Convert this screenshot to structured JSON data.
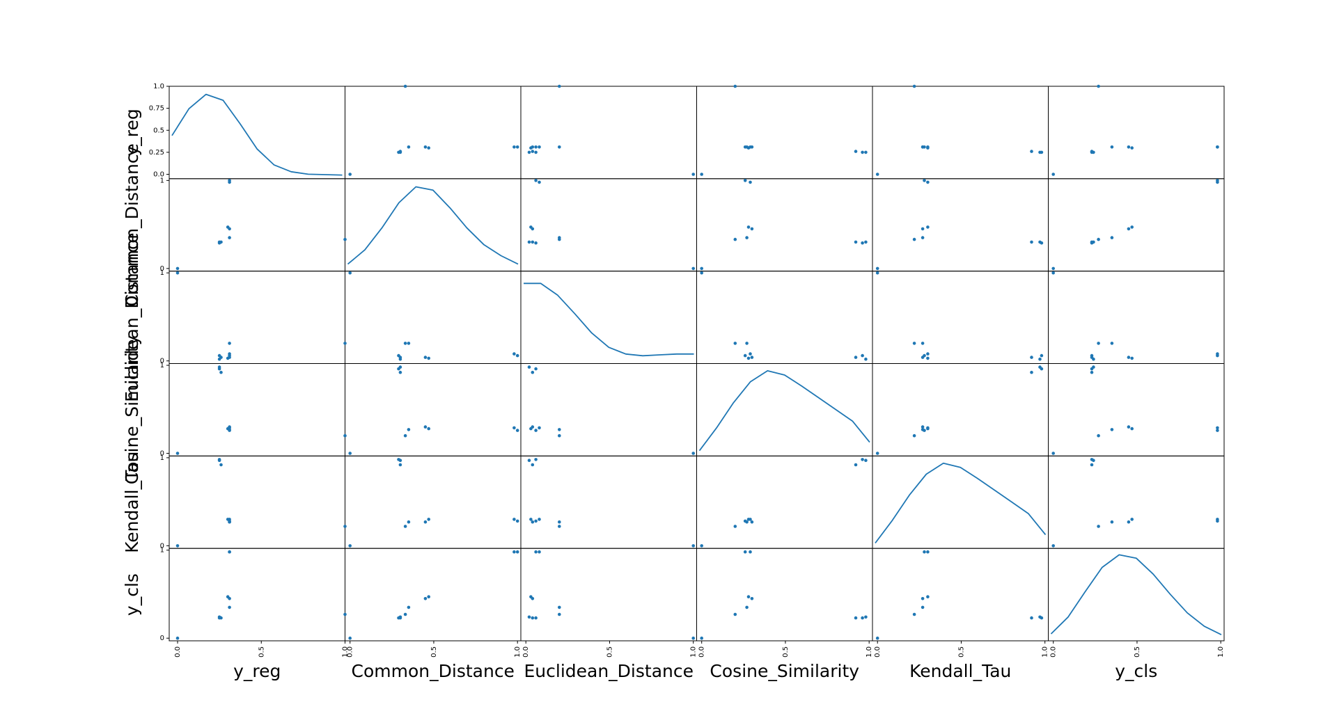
{
  "chart_data": {
    "type": "scatter",
    "subtype": "scatter-matrix",
    "diagonal": "kde",
    "variables": [
      "y_reg",
      "Common_Distance",
      "Euclidean_Distance",
      "Cosine_Similarity",
      "Kendall_Tau",
      "y_cls"
    ],
    "ranges": [
      [
        -0.05,
        1.0
      ],
      [
        -0.03,
        1.02
      ],
      [
        -0.03,
        1.02
      ],
      [
        -0.03,
        1.02
      ],
      [
        -0.03,
        1.02
      ],
      [
        -0.03,
        1.02
      ]
    ],
    "y_ticks": [
      [
        0.0,
        0.25,
        0.5,
        0.75,
        1.0
      ],
      [
        0,
        1
      ],
      [
        0,
        1
      ],
      [
        0,
        1
      ],
      [
        0,
        1
      ],
      [
        0,
        1
      ]
    ],
    "y_tick_labels": [
      [
        "0.0",
        "0.25",
        "0.5",
        "0.75",
        "1.0"
      ],
      [
        "0",
        "1"
      ],
      [
        "0",
        "1"
      ],
      [
        "0",
        "1"
      ],
      [
        "0",
        "1"
      ],
      [
        "0",
        "1"
      ]
    ],
    "x_ticks": [
      0.0,
      0.5,
      1.0
    ],
    "x_tick_labels": [
      "0.0",
      "0.5",
      "1.0"
    ],
    "observations": [
      [
        0.0,
        0.0,
        1.0,
        0.0,
        0.0,
        0.0
      ],
      [
        0.25,
        0.3,
        0.02,
        0.98,
        0.97,
        0.24
      ],
      [
        0.26,
        0.3,
        0.04,
        0.92,
        0.92,
        0.23
      ],
      [
        0.25,
        0.29,
        0.06,
        0.96,
        0.98,
        0.23
      ],
      [
        0.3,
        0.47,
        0.03,
        0.28,
        0.3,
        0.47
      ],
      [
        0.31,
        0.98,
        0.08,
        0.29,
        0.3,
        0.98
      ],
      [
        0.31,
        0.45,
        0.04,
        0.3,
        0.27,
        0.45
      ],
      [
        0.31,
        0.35,
        0.2,
        0.27,
        0.27,
        0.35
      ],
      [
        0.31,
        1.0,
        0.06,
        0.26,
        0.28,
        0.98
      ],
      [
        1.0,
        0.33,
        0.2,
        0.2,
        0.22,
        0.27
      ]
    ],
    "kde": [
      {
        "x": [
          0.0,
          0.1,
          0.2,
          0.3,
          0.4,
          0.5,
          0.6,
          0.7,
          0.8,
          0.9,
          1.0
        ],
        "y": [
          0.48,
          0.8,
          0.97,
          0.9,
          0.62,
          0.32,
          0.13,
          0.05,
          0.02,
          0.015,
          0.01
        ]
      },
      {
        "x": [
          0.0,
          0.1,
          0.2,
          0.3,
          0.4,
          0.5,
          0.6,
          0.7,
          0.8,
          0.9,
          1.0
        ],
        "y": [
          0.05,
          0.22,
          0.48,
          0.78,
          0.97,
          0.93,
          0.72,
          0.48,
          0.28,
          0.15,
          0.05
        ]
      },
      {
        "x": [
          0.0,
          0.1,
          0.2,
          0.3,
          0.4,
          0.5,
          0.6,
          0.7,
          0.8,
          0.9,
          1.0
        ],
        "y": [
          0.92,
          0.92,
          0.78,
          0.56,
          0.33,
          0.16,
          0.08,
          0.06,
          0.07,
          0.08,
          0.08
        ]
      },
      {
        "x": [
          0.0,
          0.1,
          0.2,
          0.3,
          0.4,
          0.5,
          0.6,
          0.7,
          0.8,
          0.9,
          1.0
        ],
        "y": [
          0.03,
          0.3,
          0.6,
          0.85,
          0.98,
          0.93,
          0.8,
          0.66,
          0.52,
          0.38,
          0.13
        ]
      },
      {
        "x": [
          0.0,
          0.1,
          0.2,
          0.3,
          0.4,
          0.5,
          0.6,
          0.7,
          0.8,
          0.9,
          1.0
        ],
        "y": [
          0.03,
          0.3,
          0.6,
          0.85,
          0.98,
          0.93,
          0.8,
          0.66,
          0.52,
          0.38,
          0.13
        ]
      },
      {
        "x": [
          0.0,
          0.1,
          0.2,
          0.3,
          0.4,
          0.5,
          0.6,
          0.7,
          0.8,
          0.9,
          1.0
        ],
        "y": [
          0.05,
          0.25,
          0.55,
          0.84,
          0.99,
          0.95,
          0.76,
          0.52,
          0.3,
          0.14,
          0.04
        ]
      }
    ],
    "colors": {
      "points": "#1f77b4",
      "line": "#1f77b4",
      "frame": "#000000"
    },
    "grid": false,
    "legend": "none"
  }
}
